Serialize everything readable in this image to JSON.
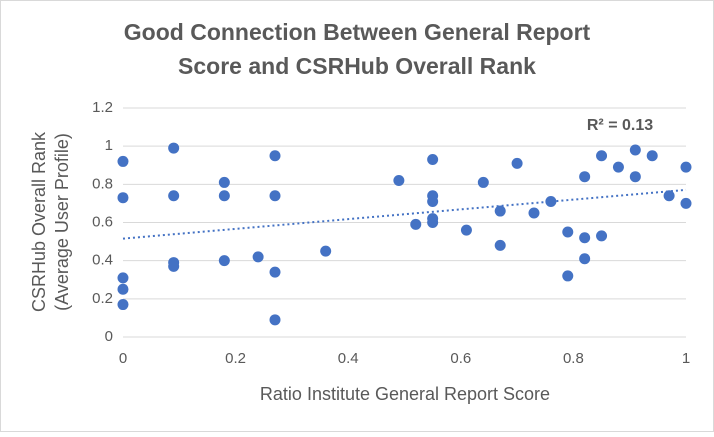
{
  "chart_data": {
    "type": "scatter",
    "title": [
      "Good Connection Between General Report",
      "Score and CSRHub Overall Rank"
    ],
    "x_label": "Ratio Institute General Report Score",
    "y_label": [
      "CSRHub Overall Rank",
      "(Average User Profile)"
    ],
    "annotation": "R² = 0.13",
    "x": [
      0,
      0,
      0,
      0,
      0,
      0.09,
      0.09,
      0.09,
      0.09,
      0.18,
      0.18,
      0.18,
      0.24,
      0.27,
      0.27,
      0.27,
      0.27,
      0.36,
      0.49,
      0.52,
      0.55,
      0.55,
      0.55,
      0.55,
      0.55,
      0.61,
      0.64,
      0.67,
      0.67,
      0.7,
      0.73,
      0.76,
      0.79,
      0.79,
      0.82,
      0.82,
      0.82,
      0.85,
      0.85,
      0.88,
      0.91,
      0.91,
      0.94,
      0.97,
      1,
      1
    ],
    "series": [
      {
        "color": "#4472c4",
        "trendline_color": "#4472c4",
        "values": [
          0.92,
          0.73,
          0.31,
          0.25,
          0.17,
          0.99,
          0.74,
          0.39,
          0.37,
          0.81,
          0.74,
          0.4,
          0.42,
          0.95,
          0.74,
          0.34,
          0.09,
          0.45,
          0.82,
          0.59,
          0.93,
          0.74,
          0.71,
          0.62,
          0.6,
          0.56,
          0.81,
          0.66,
          0.48,
          0.91,
          0.65,
          0.71,
          0.55,
          0.32,
          0.84,
          0.52,
          0.41,
          0.95,
          0.53,
          0.89,
          0.98,
          0.84,
          0.95,
          0.74,
          0.89,
          0.7
        ]
      }
    ],
    "xlim": [
      0,
      1
    ],
    "xticks": [
      0,
      0.2,
      0.4,
      0.6,
      0.8,
      1
    ],
    "ylim": [
      0,
      1.2
    ],
    "yticks": [
      0,
      0.2,
      0.4,
      0.6,
      0.8,
      1,
      1.2
    ],
    "grid": true,
    "trendline": true
  }
}
